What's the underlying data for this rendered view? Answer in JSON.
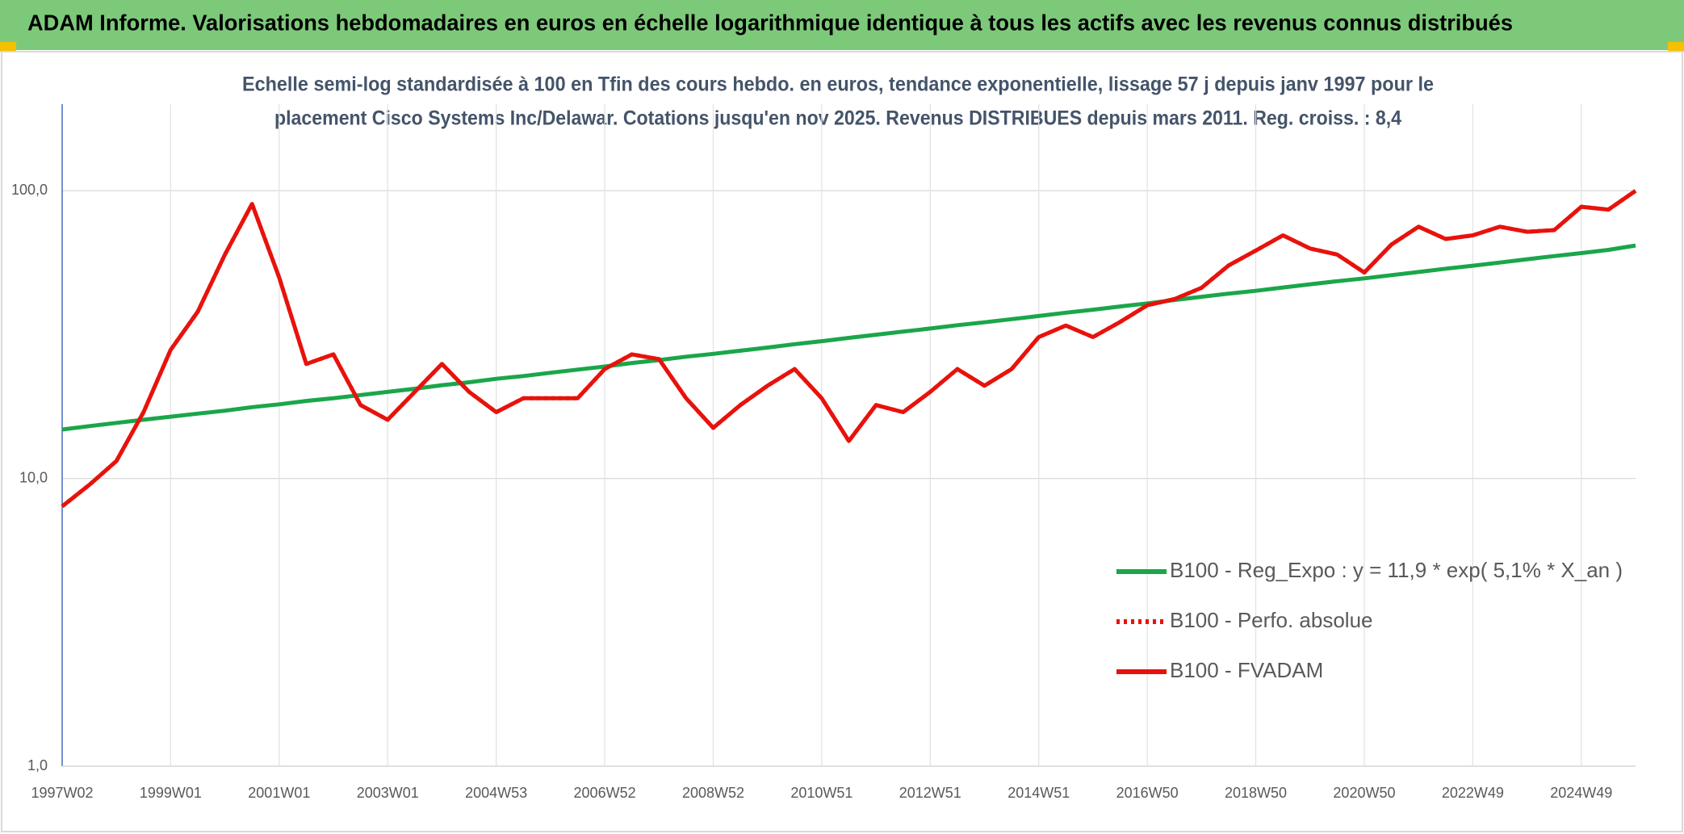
{
  "chart_data": {
    "type": "line",
    "title": "ADAM Informe. Valorisations hebdomadaires en euros en échelle logarithmique identique à tous les actifs avec les revenus connus distribués",
    "subtitle": [
      "Echelle semi-log standardisée à 100 en Tfin des cours hebdo. en euros, tendance exponentielle, lissage 57 j depuis janv 1997 pour le",
      "placement Cisco Systems Inc/Delawar. Cotations jusqu'en nov 2025. Revenus DISTRIBUES depuis mars 2011. Reg. croiss. : 8,4"
    ],
    "categories": [
      "1997W02",
      null,
      null,
      null,
      "1999W01",
      null,
      null,
      null,
      "2001W01",
      null,
      null,
      null,
      "2003W01",
      null,
      null,
      null,
      "2004W53",
      null,
      null,
      null,
      "2006W52",
      null,
      null,
      null,
      "2008W52",
      null,
      null,
      null,
      "2010W51",
      null,
      null,
      null,
      "2012W51",
      null,
      null,
      null,
      "2014W51",
      null,
      null,
      null,
      "2016W50",
      null,
      null,
      null,
      "2018W50",
      null,
      null,
      null,
      "2020W50",
      null,
      null,
      null,
      "2022W49",
      null,
      null,
      null,
      "2024W49",
      null,
      null
    ],
    "log_scale": true,
    "ylim": [
      1,
      200
    ],
    "yticks": [
      {
        "value": 1,
        "label": "1,0"
      },
      {
        "value": 10,
        "label": "10,0"
      },
      {
        "value": 100,
        "label": "100,0"
      }
    ],
    "grid": true,
    "legend": "right",
    "series": [
      {
        "name": "B100 - Reg_Expo : y = 11,9 * exp( 5,1% *  X_an )",
        "color": "#1aa64a",
        "style": "solid",
        "values": [
          14.8,
          15.2,
          15.6,
          16.0,
          16.4,
          16.8,
          17.2,
          17.7,
          18.1,
          18.6,
          19.0,
          19.5,
          20.0,
          20.5,
          21.1,
          21.6,
          22.2,
          22.7,
          23.3,
          23.9,
          24.5,
          25.2,
          25.8,
          26.5,
          27.1,
          27.8,
          28.5,
          29.3,
          30.0,
          30.8,
          31.6,
          32.4,
          33.2,
          34.1,
          34.9,
          35.8,
          36.7,
          37.7,
          38.6,
          39.6,
          40.6,
          41.7,
          42.8,
          43.9,
          44.9,
          46.1,
          47.3,
          48.5,
          49.6,
          50.9,
          52.2,
          53.6,
          54.9,
          56.3,
          57.8,
          59.3,
          60.7,
          62.3,
          64.5
        ]
      },
      {
        "name": "B100 - Perfo. absolue",
        "color": "#e8120c",
        "style": "dotted",
        "values": [
          8.0,
          9.5,
          11.5,
          17,
          28,
          38,
          60,
          90,
          50,
          25,
          27,
          18,
          16,
          20,
          25,
          20,
          17,
          19,
          19,
          19,
          24,
          27,
          26,
          19,
          15,
          18,
          21,
          24,
          19,
          13.5,
          18,
          17,
          20,
          24,
          21,
          24,
          31,
          34,
          31,
          35,
          40,
          42,
          46,
          55,
          62,
          70,
          63,
          60,
          52,
          65,
          75,
          68,
          70,
          75,
          72,
          73,
          88,
          86,
          100
        ]
      },
      {
        "name": "B100 - FVADAM",
        "color": "#e8120c",
        "style": "solid",
        "values": [
          8.0,
          9.5,
          11.5,
          17,
          28,
          38,
          60,
          90,
          50,
          25,
          27,
          18,
          16,
          20,
          25,
          20,
          17,
          19,
          19,
          19,
          24,
          27,
          26,
          19,
          15,
          18,
          21,
          24,
          19,
          13.5,
          18,
          17,
          20,
          24,
          21,
          24,
          31,
          34,
          31,
          35,
          40,
          42,
          46,
          55,
          62,
          70,
          63,
          60,
          52,
          65,
          75,
          68,
          70,
          75,
          72,
          73,
          88,
          86,
          100
        ]
      }
    ]
  }
}
